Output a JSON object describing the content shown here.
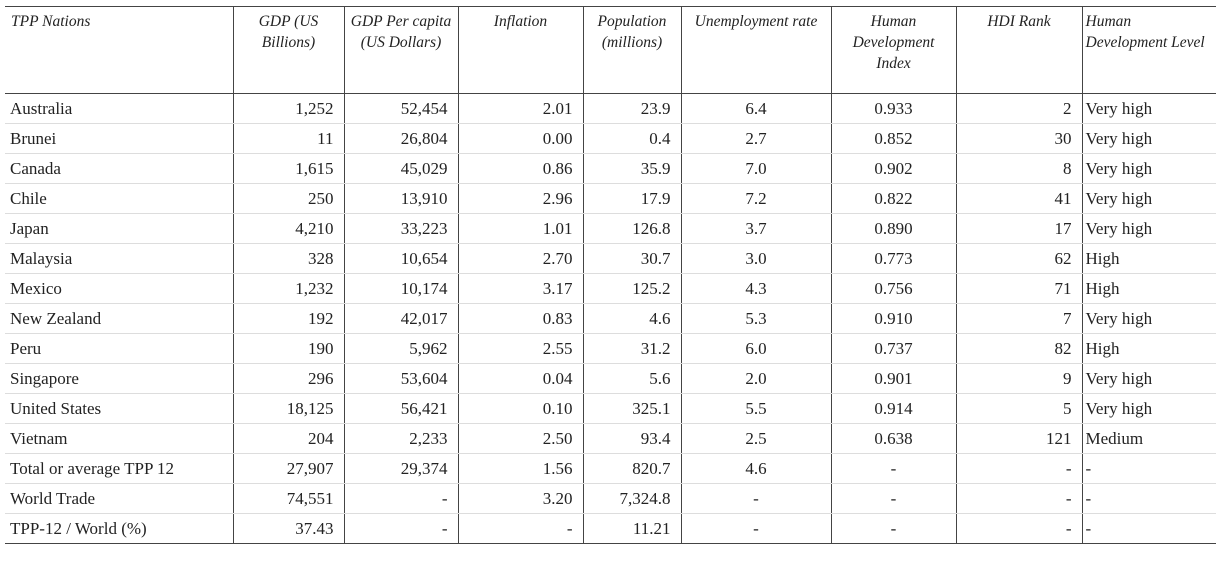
{
  "table": {
    "headers": [
      "TPP Nations",
      "GDP (US Billions)",
      "GDP Per capita (US Dollars)",
      "Inflation",
      "Population (millions)",
      "Unemployment rate",
      "Human Development Index",
      "HDI Rank",
      "Human Development Level"
    ],
    "rows": [
      [
        "Australia",
        "1,252",
        "52,454",
        "2.01",
        "23.9",
        "6.4",
        "0.933",
        "2",
        "Very high"
      ],
      [
        "Brunei",
        "11",
        "26,804",
        "0.00",
        "0.4",
        "2.7",
        "0.852",
        "30",
        "Very high"
      ],
      [
        "Canada",
        "1,615",
        "45,029",
        "0.86",
        "35.9",
        "7.0",
        "0.902",
        "8",
        "Very high"
      ],
      [
        "Chile",
        "250",
        "13,910",
        "2.96",
        "17.9",
        "7.2",
        "0.822",
        "41",
        "Very high"
      ],
      [
        "Japan",
        "4,210",
        "33,223",
        "1.01",
        "126.8",
        "3.7",
        "0.890",
        "17",
        "Very high"
      ],
      [
        "Malaysia",
        "328",
        "10,654",
        "2.70",
        "30.7",
        "3.0",
        "0.773",
        "62",
        "High"
      ],
      [
        "Mexico",
        "1,232",
        "10,174",
        "3.17",
        "125.2",
        "4.3",
        "0.756",
        "71",
        "High"
      ],
      [
        "New Zealand",
        "192",
        "42,017",
        "0.83",
        "4.6",
        "5.3",
        "0.910",
        "7",
        "Very high"
      ],
      [
        "Peru",
        "190",
        "5,962",
        "2.55",
        "31.2",
        "6.0",
        "0.737",
        "82",
        "High"
      ],
      [
        "Singapore",
        "296",
        "53,604",
        "0.04",
        "5.6",
        "2.0",
        "0.901",
        "9",
        "Very high"
      ],
      [
        "United States",
        "18,125",
        "56,421",
        "0.10",
        "325.1",
        "5.5",
        "0.914",
        "5",
        "Very high"
      ],
      [
        "Vietnam",
        "204",
        "2,233",
        "2.50",
        "93.4",
        "2.5",
        "0.638",
        "121",
        "Medium"
      ],
      [
        "Total or average TPP 12",
        "27,907",
        "29,374",
        "1.56",
        "820.7",
        "4.6",
        "-",
        "-",
        "-"
      ],
      [
        "World Trade",
        "74,551",
        "-",
        "3.20",
        "7,324.8",
        "-",
        "-",
        "-",
        "-"
      ],
      [
        "TPP-12 / World (%)",
        "37.43",
        "-",
        "-",
        "11.21",
        "-",
        "-",
        "-",
        "-"
      ]
    ]
  }
}
